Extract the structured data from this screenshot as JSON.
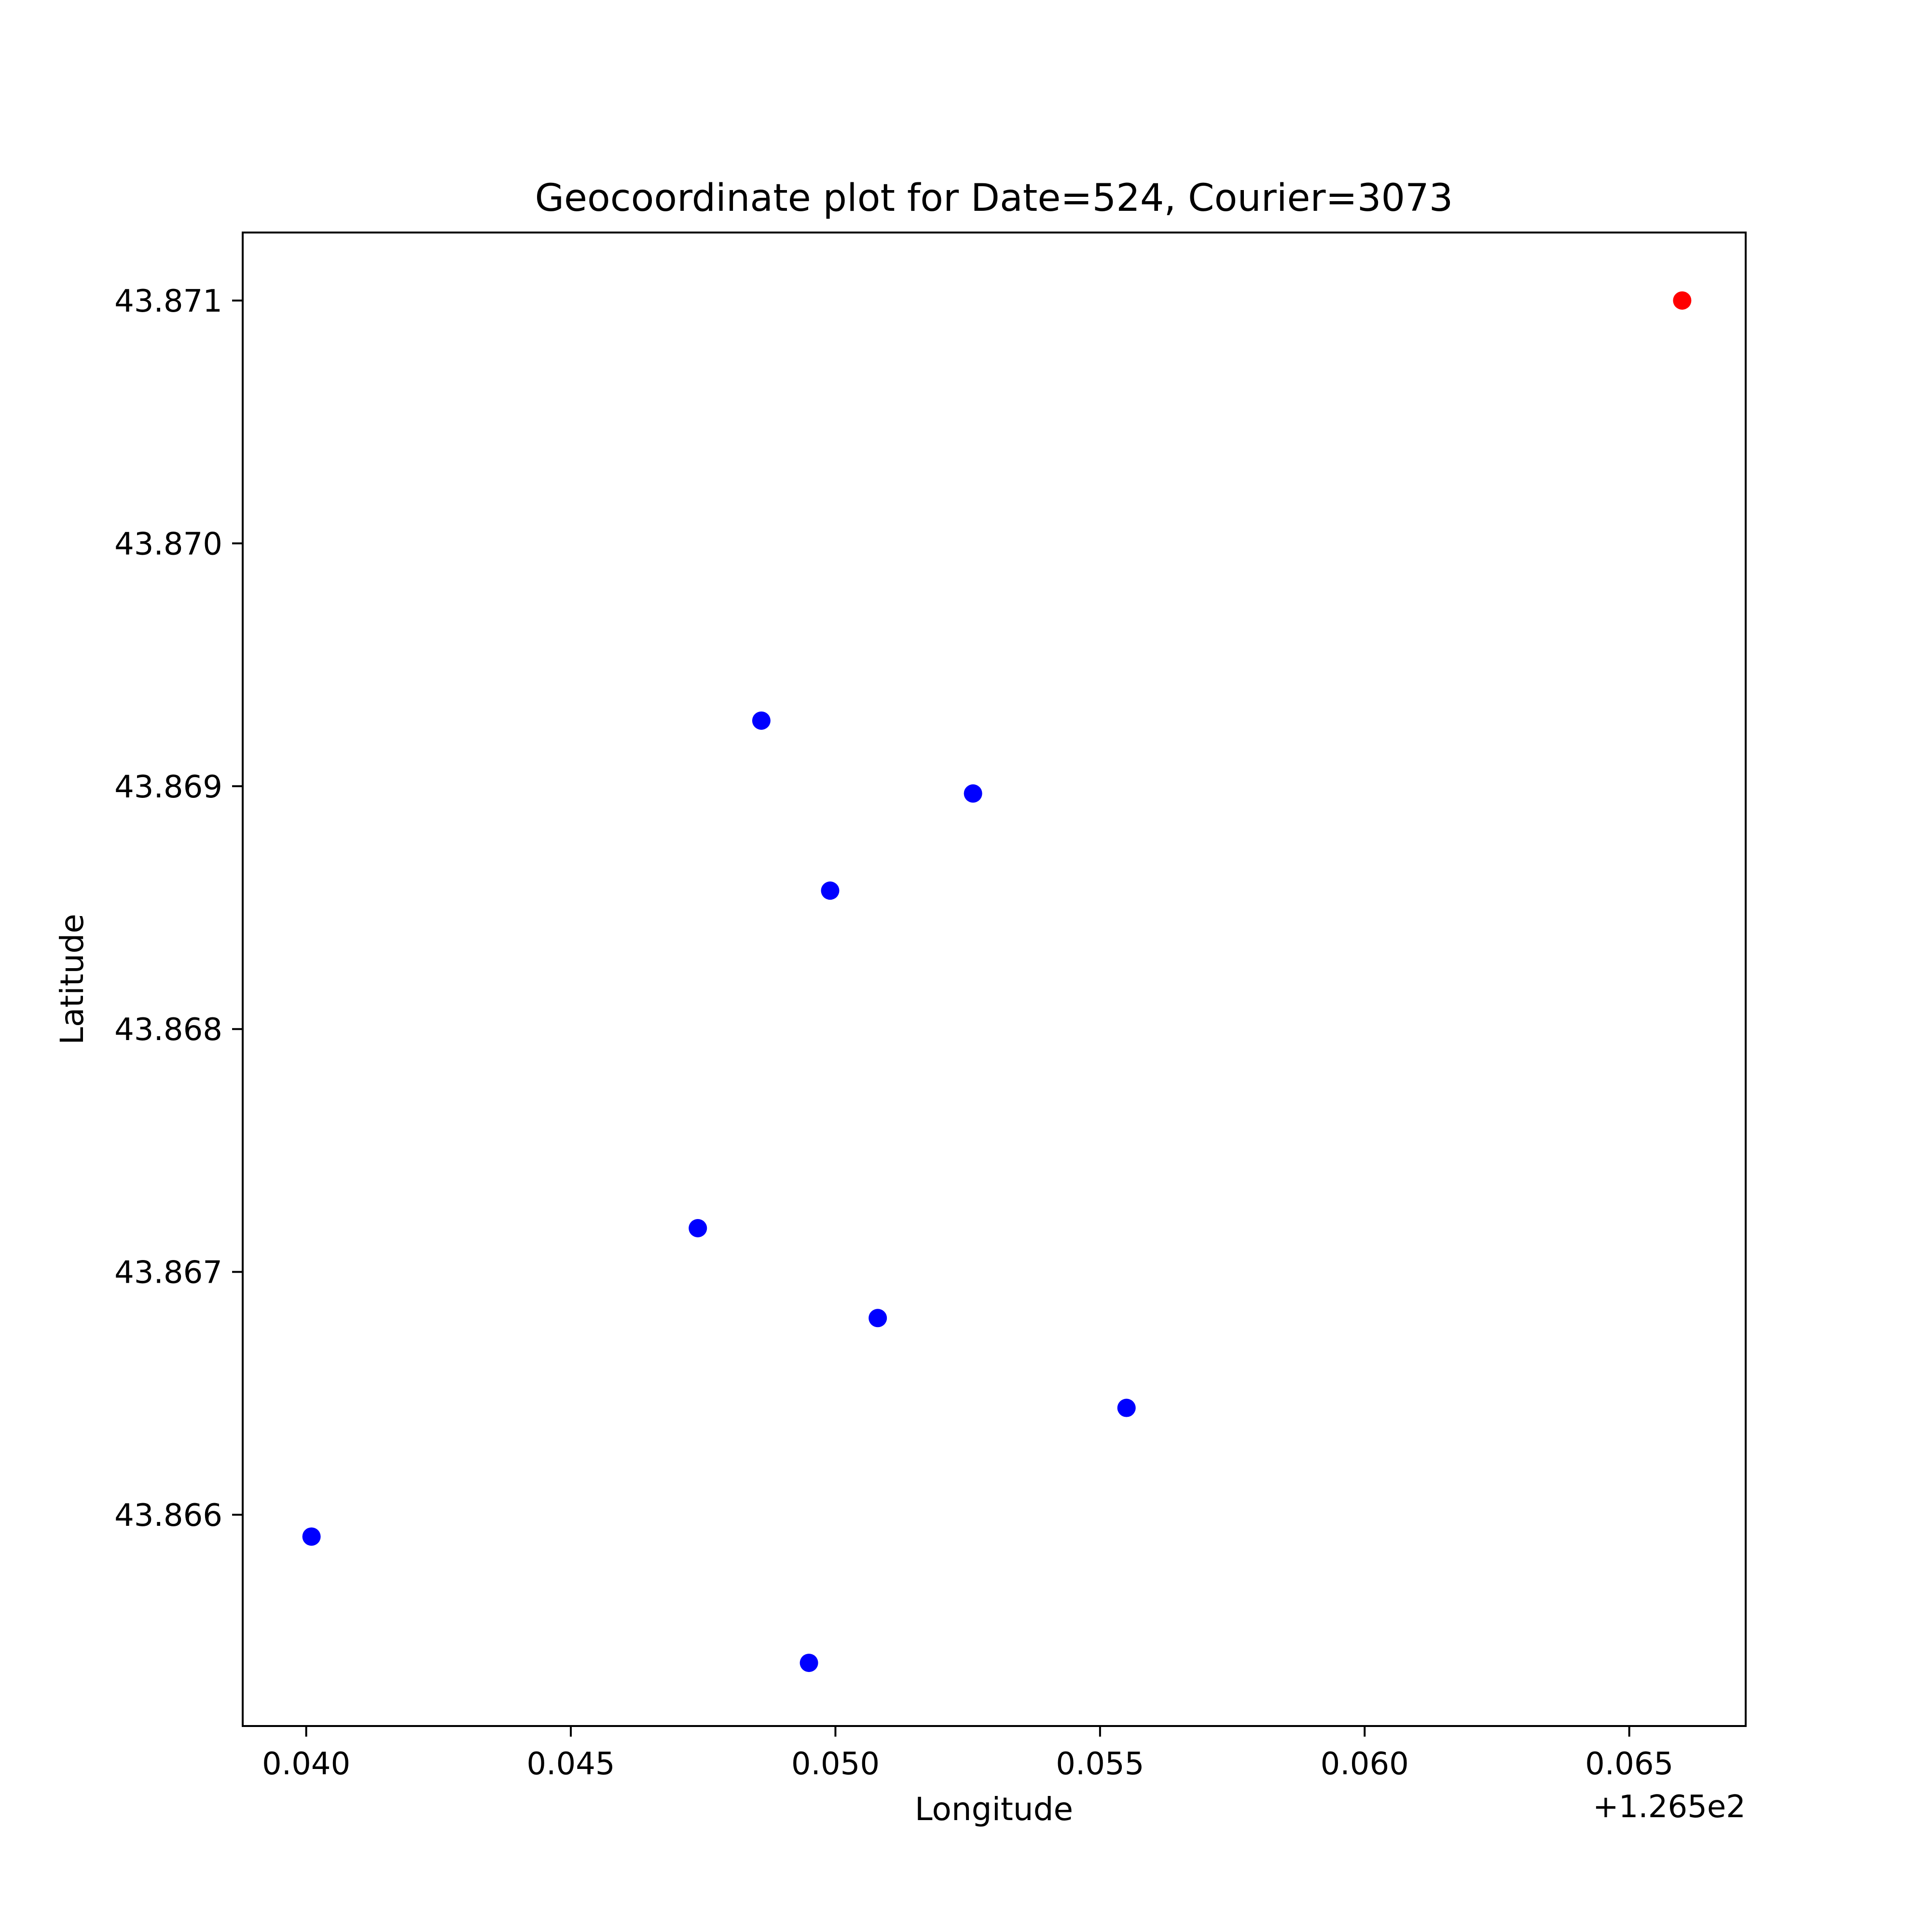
{
  "chart_data": {
    "type": "scatter",
    "title": "Geocoordinate plot for Date=524, Courier=3073",
    "xlabel": "Longitude",
    "ylabel": "Latitude",
    "x_offset_label": "+1.265e2",
    "xlim": [
      126.5388,
      126.5672
    ],
    "ylim": [
      43.86513,
      43.87128
    ],
    "x_ticks": [
      126.54,
      126.545,
      126.55,
      126.555,
      126.56,
      126.565
    ],
    "x_tick_labels": [
      "0.040",
      "0.045",
      "0.050",
      "0.055",
      "0.060",
      "0.065"
    ],
    "y_ticks": [
      43.866,
      43.867,
      43.868,
      43.869,
      43.87,
      43.871
    ],
    "y_tick_labels": [
      "43.866",
      "43.867",
      "43.868",
      "43.869",
      "43.870",
      "43.871"
    ],
    "grid": false,
    "series": [
      {
        "color": "#0000ff",
        "points": [
          {
            "x": 126.5401,
            "y": 43.86591
          },
          {
            "x": 126.5474,
            "y": 43.86718
          },
          {
            "x": 126.5486,
            "y": 43.86927
          },
          {
            "x": 126.5495,
            "y": 43.86539
          },
          {
            "x": 126.5499,
            "y": 43.86857
          },
          {
            "x": 126.5508,
            "y": 43.86681
          },
          {
            "x": 126.5526,
            "y": 43.86897
          },
          {
            "x": 126.5555,
            "y": 43.86644
          }
        ]
      },
      {
        "color": "#ff0000",
        "points": [
          {
            "x": 126.566,
            "y": 43.871
          }
        ]
      }
    ]
  }
}
